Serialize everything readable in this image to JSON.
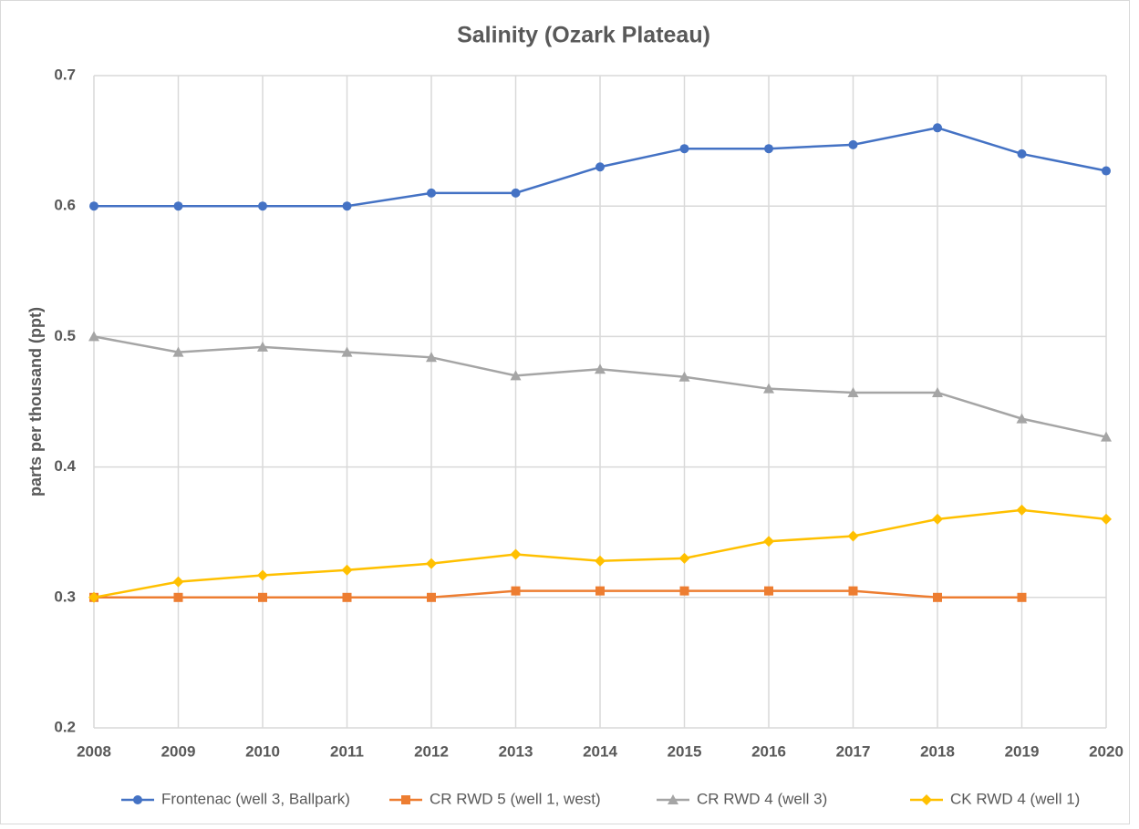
{
  "chart_data": {
    "type": "line",
    "title": "Salinity (Ozark Plateau)",
    "y_label": "parts per thousand (ppt)",
    "x": [
      2008,
      2009,
      2010,
      2011,
      2012,
      2013,
      2014,
      2015,
      2016,
      2017,
      2018,
      2019,
      2020
    ],
    "xlim": [
      2008,
      2020
    ],
    "xticks": [
      2008,
      2009,
      2010,
      2011,
      2012,
      2013,
      2014,
      2015,
      2016,
      2017,
      2018,
      2019,
      2020
    ],
    "ylim": [
      0.2,
      0.7
    ],
    "yticks": [
      0.2,
      0.3,
      0.4,
      0.5,
      0.6,
      0.7
    ],
    "grid": true,
    "legend": "bottom",
    "series": [
      {
        "name": "Frontenac (well 3, Ballpark)",
        "color": "#4472c4",
        "marker": "circle",
        "values": [
          0.6,
          0.6,
          0.6,
          0.6,
          0.61,
          0.61,
          0.63,
          0.644,
          0.644,
          0.647,
          0.66,
          0.64,
          0.627
        ]
      },
      {
        "name": "CR RWD 5 (well 1, west)",
        "color": "#ed7d31",
        "marker": "square",
        "values": [
          0.3,
          0.3,
          0.3,
          0.3,
          0.3,
          0.305,
          0.305,
          0.305,
          0.305,
          0.305,
          0.3,
          0.3,
          null
        ]
      },
      {
        "name": "CR RWD 4 (well 3)",
        "color": "#a5a5a5",
        "marker": "triangle",
        "values": [
          0.5,
          0.488,
          0.492,
          0.488,
          0.484,
          0.47,
          0.475,
          0.469,
          0.46,
          0.457,
          0.457,
          0.437,
          0.423
        ]
      },
      {
        "name": "CK RWD 4 (well 1)",
        "color": "#ffc000",
        "marker": "diamond",
        "values": [
          0.3,
          0.312,
          0.317,
          0.321,
          0.326,
          0.333,
          0.328,
          0.33,
          0.343,
          0.347,
          0.36,
          0.367,
          0.36
        ]
      }
    ]
  }
}
